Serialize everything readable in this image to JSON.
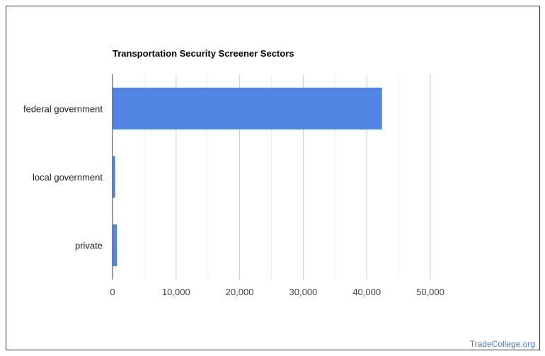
{
  "chart_data": {
    "type": "bar",
    "orientation": "horizontal",
    "title": "Transportation Security Screener Sectors",
    "categories": [
      "federal government",
      "local government",
      "private"
    ],
    "values": [
      42400,
      400,
      700
    ],
    "xlim": [
      0,
      50000
    ],
    "xticks": [
      0,
      10000,
      20000,
      30000,
      40000,
      50000
    ],
    "xtick_labels": [
      "0",
      "10,000",
      "20,000",
      "30,000",
      "40,000",
      "50,000"
    ],
    "grid": true,
    "bar_color": "#5285e3"
  },
  "credit": "TradeCollege.org"
}
